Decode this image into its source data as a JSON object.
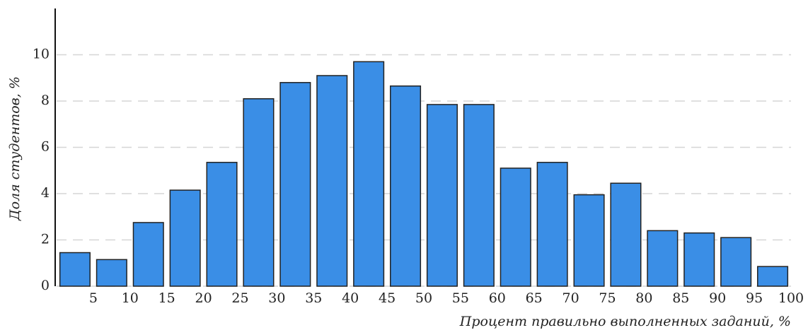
{
  "chart_data": {
    "type": "histogram",
    "x_label": "Процент правильно выполненных заданий, %",
    "y_label": "Доля студентов, %",
    "bins": [
      0,
      5,
      10,
      15,
      20,
      25,
      30,
      35,
      40,
      45,
      50,
      55,
      60,
      65,
      70,
      75,
      80,
      85,
      90,
      95,
      100
    ],
    "counts": [
      1.45,
      1.15,
      2.75,
      4.15,
      5.35,
      8.1,
      8.8,
      9.1,
      9.7,
      8.65,
      7.85,
      7.85,
      5.1,
      5.35,
      3.95,
      4.45,
      2.4,
      2.3,
      2.1,
      0.85
    ],
    "color": "#3a8ee6",
    "xlim": [
      0,
      100
    ],
    "xticks": [
      5,
      10,
      15,
      20,
      25,
      30,
      35,
      40,
      45,
      50,
      55,
      60,
      65,
      70,
      75,
      80,
      85,
      90,
      95,
      100
    ],
    "ylim": [
      0,
      12
    ],
    "yticks": [
      0,
      2,
      4,
      6,
      8,
      10
    ],
    "grid": true
  }
}
